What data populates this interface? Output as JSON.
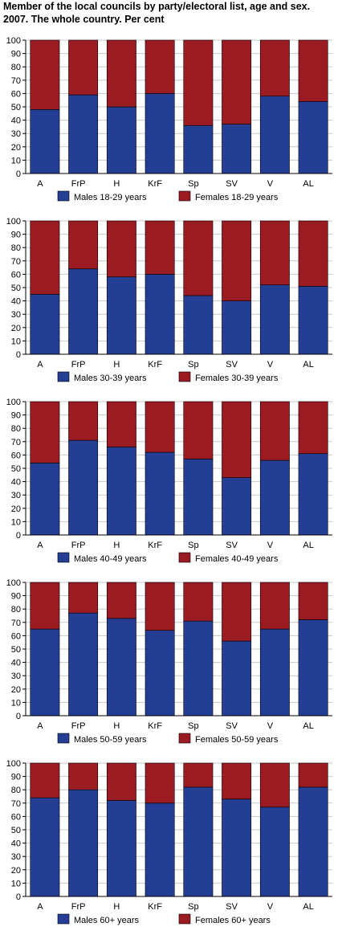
{
  "title_line1": "Member of the local councils by party/electoral list, age and sex.",
  "title_line2": "2007. The whole country. Per cent",
  "colors": {
    "male": "#233e93",
    "female": "#9b1b22",
    "grid": "#c8c8c8",
    "axis": "#000000"
  },
  "chart_data": [
    {
      "type": "bar",
      "stacked": true,
      "categories": [
        "A",
        "FrP",
        "H",
        "KrF",
        "Sp",
        "SV",
        "V",
        "AL"
      ],
      "ylim": [
        0,
        100
      ],
      "yticks": [
        0,
        10,
        20,
        30,
        40,
        50,
        60,
        70,
        80,
        90,
        100
      ],
      "grid": true,
      "legend": "bottom",
      "series": [
        {
          "name": "Males 18-29 years",
          "values": [
            48,
            59,
            50,
            60,
            36,
            37,
            58,
            54
          ]
        },
        {
          "name": "Females 18-29 years",
          "values": [
            52,
            41,
            50,
            40,
            64,
            63,
            42,
            46
          ]
        }
      ]
    },
    {
      "type": "bar",
      "stacked": true,
      "categories": [
        "A",
        "FrP",
        "H",
        "KrF",
        "Sp",
        "SV",
        "V",
        "AL"
      ],
      "ylim": [
        0,
        100
      ],
      "yticks": [
        0,
        10,
        20,
        30,
        40,
        50,
        60,
        70,
        80,
        90,
        100
      ],
      "grid": true,
      "legend": "bottom",
      "series": [
        {
          "name": "Males 30-39 years",
          "values": [
            45,
            64,
            58,
            60,
            44,
            40,
            52,
            51
          ]
        },
        {
          "name": "Females 30-39 years",
          "values": [
            55,
            36,
            42,
            40,
            56,
            60,
            48,
            49
          ]
        }
      ]
    },
    {
      "type": "bar",
      "stacked": true,
      "categories": [
        "A",
        "FrP",
        "H",
        "KrF",
        "Sp",
        "SV",
        "V",
        "AL"
      ],
      "ylim": [
        0,
        100
      ],
      "yticks": [
        0,
        10,
        20,
        30,
        40,
        50,
        60,
        70,
        80,
        90,
        100
      ],
      "grid": true,
      "legend": "bottom",
      "series": [
        {
          "name": "Males 40-49 years",
          "values": [
            54,
            71,
            66,
            62,
            57,
            43,
            56,
            61
          ]
        },
        {
          "name": "Females 40-49 years",
          "values": [
            46,
            29,
            34,
            38,
            43,
            57,
            44,
            39
          ]
        }
      ]
    },
    {
      "type": "bar",
      "stacked": true,
      "categories": [
        "A",
        "FrP",
        "H",
        "KrF",
        "Sp",
        "SV",
        "V",
        "AL"
      ],
      "ylim": [
        0,
        100
      ],
      "yticks": [
        0,
        10,
        20,
        30,
        40,
        50,
        60,
        70,
        80,
        90,
        100
      ],
      "grid": true,
      "legend": "bottom",
      "series": [
        {
          "name": "Males 50-59 years",
          "values": [
            65,
            77,
            73,
            64,
            71,
            56,
            65,
            72
          ]
        },
        {
          "name": "Females 50-59 years",
          "values": [
            35,
            23,
            27,
            36,
            29,
            44,
            35,
            28
          ]
        }
      ]
    },
    {
      "type": "bar",
      "stacked": true,
      "categories": [
        "A",
        "FrP",
        "H",
        "KrF",
        "Sp",
        "SV",
        "V",
        "AL"
      ],
      "ylim": [
        0,
        100
      ],
      "yticks": [
        0,
        10,
        20,
        30,
        40,
        50,
        60,
        70,
        80,
        90,
        100
      ],
      "grid": true,
      "legend": "bottom",
      "series": [
        {
          "name": "Males 60+ years",
          "values": [
            74,
            80,
            72,
            70,
            82,
            73,
            67,
            82
          ]
        },
        {
          "name": "Females 60+ years",
          "values": [
            26,
            20,
            28,
            30,
            18,
            27,
            33,
            18
          ]
        }
      ]
    }
  ]
}
